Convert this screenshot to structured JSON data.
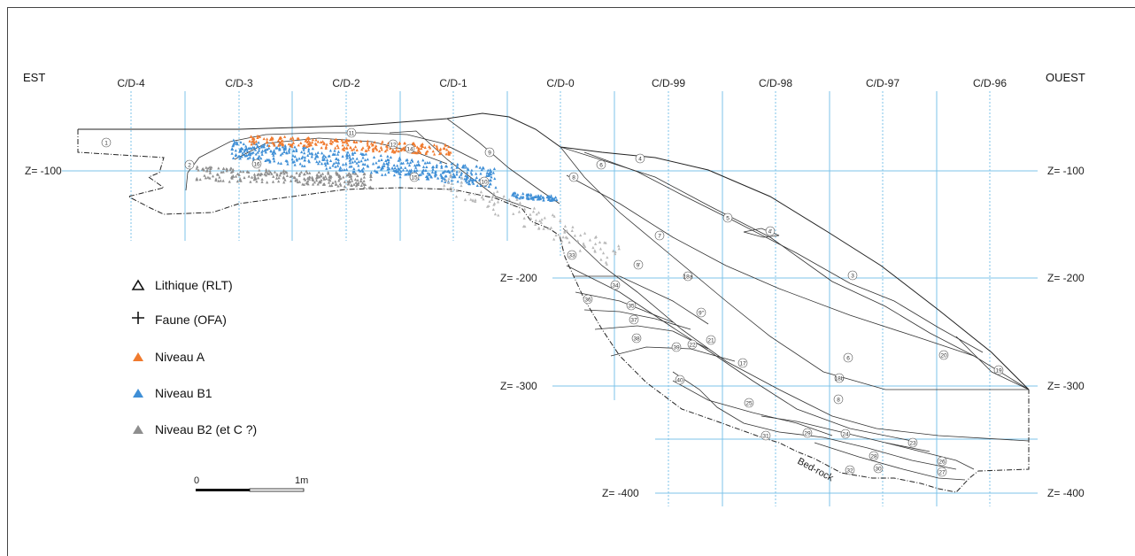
{
  "sides": {
    "east": "EST",
    "west": "OUEST"
  },
  "columns": [
    "C/D-4",
    "C/D-3",
    "C/D-2",
    "C/D-1",
    "C/D-0",
    "C/D-99",
    "C/D-98",
    "C/D-97",
    "C/D-96"
  ],
  "depth_labels": {
    "z100": "Z= -100",
    "z200": "Z= -200",
    "z300": "Z= -300",
    "z400": "Z= -400"
  },
  "legend": {
    "lithique": "Lithique (RLT)",
    "faune": "Faune (OFA)",
    "niveau_a": "Niveau A",
    "niveau_b1": "Niveau B1",
    "niveau_b2": "Niveau B2 (et C ?)"
  },
  "scale": {
    "zero": "0",
    "one": "1m"
  },
  "bedrock": "Bed-rock",
  "colors": {
    "niveau_a": "#f07a2e",
    "niveau_b1": "#3f8fd6",
    "niveau_b2": "#8e8e8e",
    "grid": "#7cc3ea"
  },
  "layers": [
    "1",
    "2",
    "16",
    "11",
    "12",
    "14",
    "15",
    "10",
    "9",
    "8",
    "6",
    "4",
    "5",
    "4'",
    "7",
    "9'",
    "18a",
    "3",
    "33",
    "34",
    "36",
    "35",
    "37",
    "38",
    "39",
    "22",
    "21",
    "9\"",
    "17",
    "40",
    "6",
    "18b",
    "8",
    "20",
    "19",
    "25",
    "31",
    "29",
    "24",
    "28",
    "23",
    "32",
    "30",
    "26",
    "27"
  ]
}
